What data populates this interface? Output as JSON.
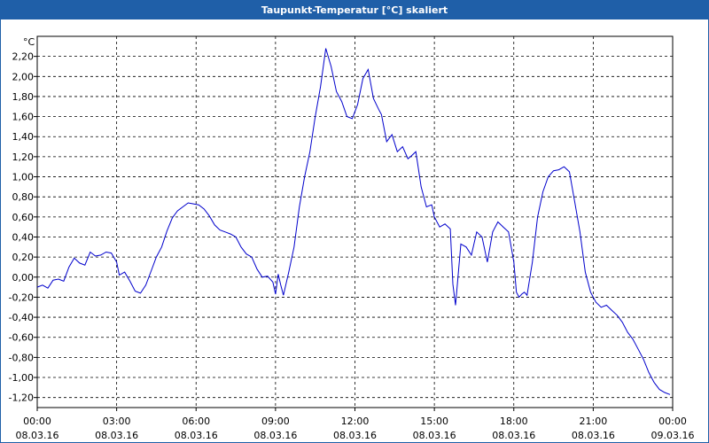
{
  "window": {
    "title": "Taupunkt-Temperatur [°C] skaliert"
  },
  "chart_data": {
    "type": "line",
    "title": "Taupunkt-Temperatur [°C] skaliert",
    "ylabel_unit": "°C",
    "ylim": [
      -1.3,
      2.4
    ],
    "y_ticks": [
      "2,20",
      "2,00",
      "1,80",
      "1,60",
      "1,40",
      "1,20",
      "1,00",
      "0,80",
      "0,60",
      "0,40",
      "0,20",
      "0,00",
      "-0,20",
      "-0,40",
      "-0,60",
      "-0,80",
      "-1,00",
      "-1,20"
    ],
    "y_tick_values": [
      2.2,
      2.0,
      1.8,
      1.6,
      1.4,
      1.2,
      1.0,
      0.8,
      0.6,
      0.4,
      0.2,
      0.0,
      -0.2,
      -0.4,
      -0.6,
      -0.8,
      -1.0,
      -1.2
    ],
    "x_ticks": [
      {
        "time": "00:00",
        "date": "08.03.16",
        "h": 0
      },
      {
        "time": "03:00",
        "date": "08.03.16",
        "h": 3
      },
      {
        "time": "06:00",
        "date": "08.03.16",
        "h": 6
      },
      {
        "time": "09:00",
        "date": "08.03.16",
        "h": 9
      },
      {
        "time": "12:00",
        "date": "08.03.16",
        "h": 12
      },
      {
        "time": "15:00",
        "date": "08.03.16",
        "h": 15
      },
      {
        "time": "18:00",
        "date": "08.03.16",
        "h": 18
      },
      {
        "time": "21:00",
        "date": "08.03.16",
        "h": 21
      },
      {
        "time": "00:00",
        "date": "09.03.16",
        "h": 24
      }
    ],
    "xlim_hours": [
      0,
      24
    ],
    "grid": true,
    "line_color": "#0000cc",
    "series": [
      {
        "x": [
          0.0,
          0.2,
          0.4,
          0.6,
          0.8,
          1.0,
          1.2,
          1.4,
          1.6,
          1.8,
          2.0,
          2.2,
          2.4,
          2.6,
          2.8,
          3.0,
          3.1,
          3.3,
          3.5,
          3.7,
          3.9,
          4.1,
          4.3,
          4.5,
          4.7,
          4.9,
          5.1,
          5.3,
          5.5,
          5.7,
          5.9,
          6.1,
          6.3,
          6.5,
          6.7,
          6.9,
          7.1,
          7.3,
          7.5,
          7.7,
          7.9,
          8.1,
          8.3,
          8.5,
          8.7,
          8.9,
          9.0,
          9.1,
          9.2,
          9.3,
          9.5,
          9.7,
          9.9,
          10.1,
          10.3,
          10.5,
          10.7,
          10.9,
          11.1,
          11.3,
          11.5,
          11.7,
          11.9,
          12.1,
          12.3,
          12.5,
          12.7,
          12.9,
          13.0,
          13.2,
          13.4,
          13.6,
          13.8,
          14.0,
          14.1,
          14.3,
          14.5,
          14.7,
          14.9,
          15.0,
          15.2,
          15.4,
          15.6,
          15.7,
          15.8,
          16.0,
          16.2,
          16.4,
          16.6,
          16.8,
          17.0,
          17.2,
          17.4,
          17.6,
          17.8,
          18.0,
          18.1,
          18.2,
          18.3,
          18.4,
          18.5,
          18.7,
          18.9,
          19.1,
          19.3,
          19.5,
          19.7,
          19.9,
          20.1,
          20.3,
          20.5,
          20.7,
          20.9,
          21.1,
          21.3,
          21.5,
          21.7,
          21.9,
          22.1,
          22.3,
          22.5,
          22.7,
          22.9,
          23.1,
          23.3,
          23.5,
          23.7,
          23.9
        ],
        "y": [
          -0.1,
          -0.08,
          -0.11,
          -0.03,
          -0.02,
          -0.04,
          0.1,
          0.19,
          0.14,
          0.12,
          0.25,
          0.21,
          0.22,
          0.25,
          0.24,
          0.15,
          0.02,
          0.05,
          -0.04,
          -0.14,
          -0.16,
          -0.08,
          0.06,
          0.2,
          0.3,
          0.46,
          0.59,
          0.66,
          0.7,
          0.74,
          0.73,
          0.72,
          0.68,
          0.61,
          0.52,
          0.47,
          0.45,
          0.43,
          0.4,
          0.3,
          0.23,
          0.2,
          0.08,
          0.0,
          0.01,
          -0.05,
          -0.17,
          0.03,
          -0.08,
          -0.18,
          0.05,
          0.3,
          0.7,
          1.0,
          1.25,
          1.6,
          1.9,
          2.28,
          2.1,
          1.85,
          1.75,
          1.6,
          1.58,
          1.72,
          1.98,
          2.07,
          1.78,
          1.67,
          1.62,
          1.35,
          1.42,
          1.25,
          1.3,
          1.18,
          1.2,
          1.25,
          0.9,
          0.7,
          0.72,
          0.6,
          0.5,
          0.53,
          0.48,
          -0.07,
          -0.28,
          0.33,
          0.3,
          0.22,
          0.45,
          0.4,
          0.15,
          0.45,
          0.55,
          0.5,
          0.45,
          0.15,
          -0.15,
          -0.2,
          -0.17,
          -0.15,
          -0.18,
          0.15,
          0.6,
          0.85,
          1.0,
          1.06,
          1.07,
          1.1,
          1.05,
          0.75,
          0.45,
          0.05,
          -0.15,
          -0.25,
          -0.3,
          -0.28,
          -0.33,
          -0.38,
          -0.45,
          -0.55,
          -0.62,
          -0.72,
          -0.82,
          -0.95,
          -1.05,
          -1.12,
          -1.15,
          -1.17
        ]
      }
    ]
  }
}
